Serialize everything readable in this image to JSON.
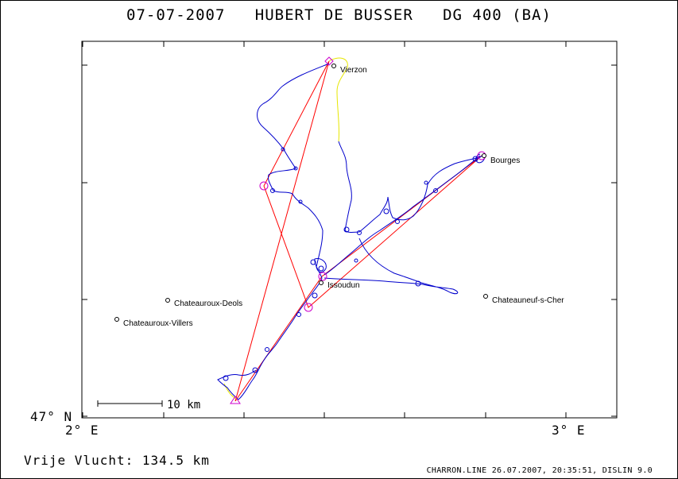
{
  "title": {
    "date": "07-07-2007",
    "pilot": "HUBERT DE BUSSER",
    "glider": "DG 400 (BA)"
  },
  "axes": {
    "x_left_label": "2° E",
    "x_right_label": "3° E",
    "y_label": "47° N"
  },
  "scale_bar": {
    "label": "10 km"
  },
  "free_flight": {
    "label": "Vrije Vlucht:",
    "value": "134.5 km"
  },
  "footer": "CHARRON.LINE 26.07.2007, 20:35:51, DISLIN 9.0",
  "places": [
    {
      "name": "Vierzon"
    },
    {
      "name": "Bourges"
    },
    {
      "name": "Issoudun"
    },
    {
      "name": "Chateauroux-Deols"
    },
    {
      "name": "Chateauroux-Villers"
    },
    {
      "name": "Chateauneuf-s-Cher"
    }
  ],
  "colors": {
    "track": "#0000cc",
    "task": "#ff0000",
    "engine": "#e6e600",
    "turnpoint": "#cc00cc",
    "frame": "#000000"
  }
}
